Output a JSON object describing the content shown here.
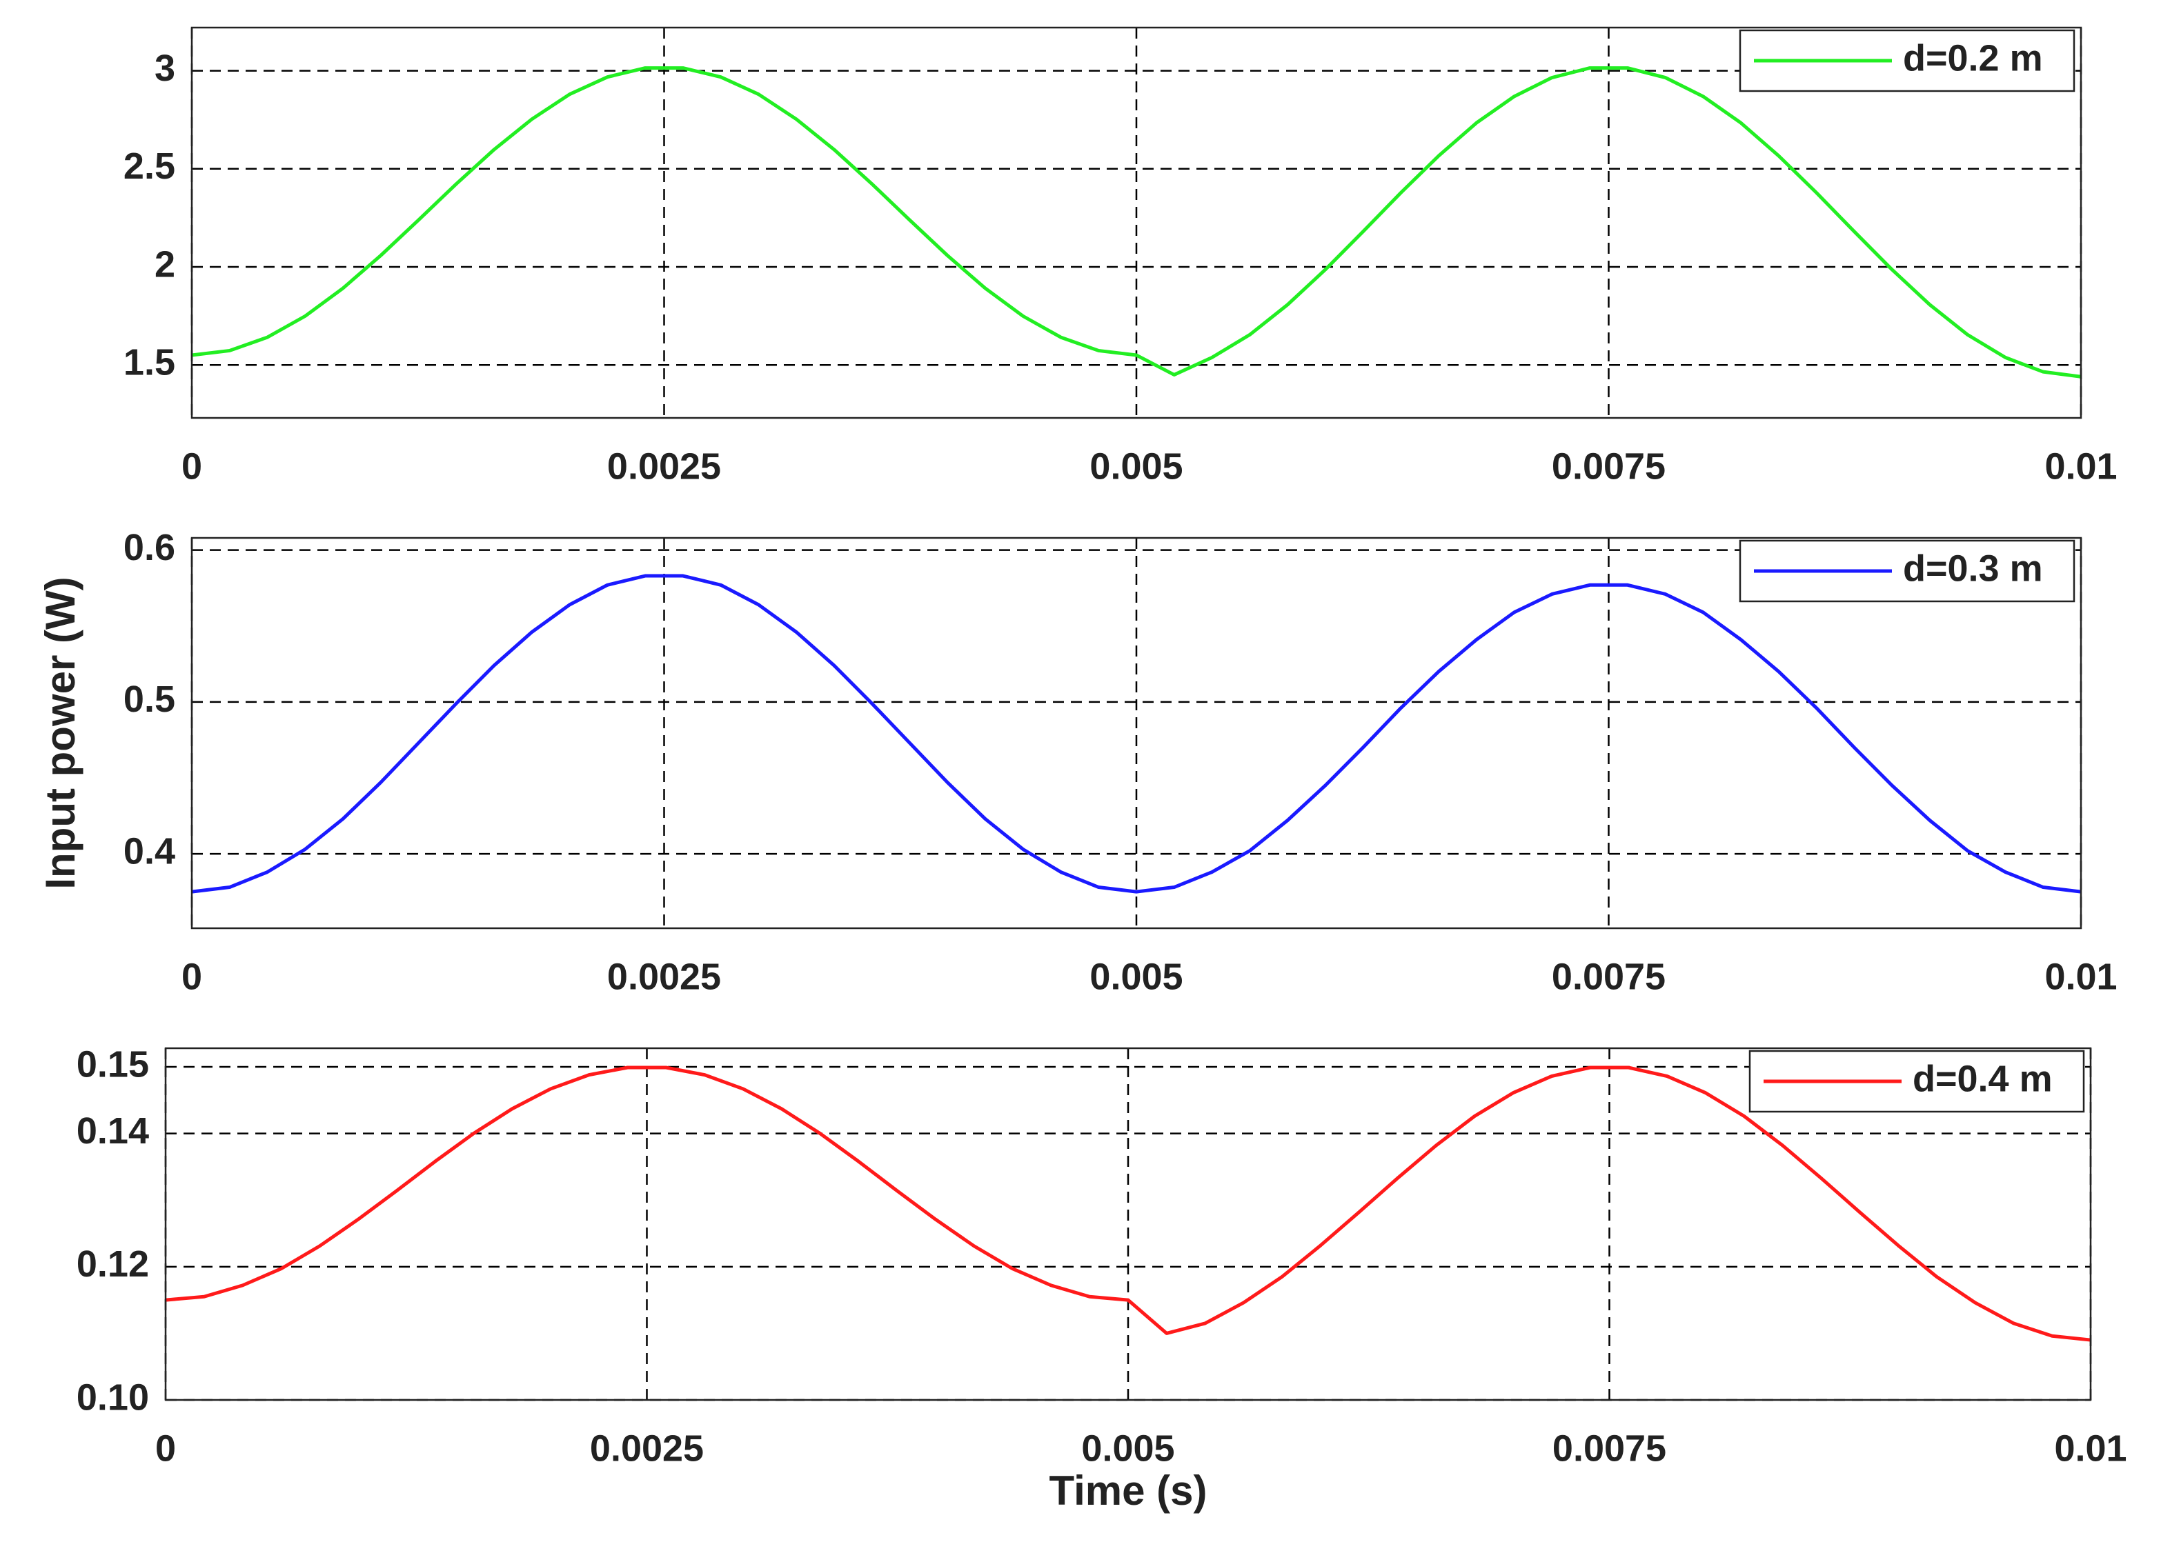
{
  "chart_data": [
    {
      "type": "line",
      "x": [
        0,
        0.0002,
        0.0004,
        0.0006,
        0.0008,
        0.001,
        0.0012,
        0.0014,
        0.0016,
        0.0018,
        0.002,
        0.0022,
        0.0024,
        0.0026,
        0.0028,
        0.003,
        0.0032,
        0.0034,
        0.0036,
        0.0038,
        0.004,
        0.0042,
        0.0044,
        0.0046,
        0.0048,
        0.005,
        0.0052,
        0.0054,
        0.0056,
        0.0058,
        0.006,
        0.0062,
        0.0064,
        0.0066,
        0.0068,
        0.007,
        0.0072,
        0.0074,
        0.0076,
        0.0078,
        0.008,
        0.0082,
        0.0084,
        0.0086,
        0.0088,
        0.009,
        0.0092,
        0.0094,
        0.0096,
        0.0098,
        0.01
      ],
      "series": [
        {
          "name": "d=0.2 m",
          "color": "#22ee22",
          "values": [
            1.55,
            1.573,
            1.641,
            1.749,
            1.891,
            2.058,
            2.239,
            2.423,
            2.598,
            2.753,
            2.88,
            2.968,
            3.014,
            3.014,
            2.968,
            2.88,
            2.753,
            2.598,
            2.423,
            2.239,
            2.058,
            1.891,
            1.749,
            1.641,
            1.573,
            1.55,
            1.45,
            1.538,
            1.654,
            1.807,
            1.986,
            2.18,
            2.378,
            2.566,
            2.734,
            2.869,
            2.965,
            3.014,
            3.014,
            2.965,
            2.869,
            2.734,
            2.566,
            2.378,
            2.18,
            1.986,
            1.807,
            1.654,
            1.538,
            1.465,
            1.44
          ]
        }
      ],
      "xlim": [
        0,
        0.01
      ],
      "xticks": [
        0,
        0.0025,
        0.005,
        0.0075,
        0.01
      ],
      "ylim": [
        1.23,
        3.22
      ],
      "yticks": [
        1.5,
        2,
        2.5,
        3
      ],
      "grid": true,
      "legend": "upper right"
    },
    {
      "type": "line",
      "ylabel": "Input power (W)",
      "x": [
        0,
        0.0002,
        0.0004,
        0.0006,
        0.0008,
        0.001,
        0.0012,
        0.0014,
        0.0016,
        0.0018,
        0.002,
        0.0022,
        0.0024,
        0.0026,
        0.0028,
        0.003,
        0.0032,
        0.0034,
        0.0036,
        0.0038,
        0.004,
        0.0042,
        0.0044,
        0.0046,
        0.0048,
        0.005,
        0.0052,
        0.0054,
        0.0056,
        0.0058,
        0.006,
        0.0062,
        0.0064,
        0.0066,
        0.0068,
        0.007,
        0.0072,
        0.0074,
        0.0076,
        0.0078,
        0.008,
        0.0082,
        0.0084,
        0.0086,
        0.0088,
        0.009,
        0.0092,
        0.0094,
        0.0096,
        0.0098,
        0.01
      ],
      "series": [
        {
          "name": "d=0.3 m",
          "color": "#1a1aff",
          "values": [
            0.375,
            0.378,
            0.388,
            0.403,
            0.423,
            0.447,
            0.473,
            0.499,
            0.524,
            0.546,
            0.564,
            0.577,
            0.583,
            0.583,
            0.577,
            0.564,
            0.546,
            0.524,
            0.499,
            0.473,
            0.447,
            0.423,
            0.403,
            0.388,
            0.378,
            0.375,
            0.378,
            0.388,
            0.402,
            0.422,
            0.445,
            0.47,
            0.496,
            0.52,
            0.541,
            0.559,
            0.571,
            0.577,
            0.577,
            0.571,
            0.559,
            0.541,
            0.52,
            0.496,
            0.47,
            0.445,
            0.422,
            0.402,
            0.388,
            0.378,
            0.375
          ]
        }
      ],
      "xlim": [
        0,
        0.01
      ],
      "xticks": [
        0,
        0.0025,
        0.005,
        0.0075,
        0.01
      ],
      "ylim": [
        0.351,
        0.608
      ],
      "yticks": [
        0.4,
        0.5,
        0.6
      ],
      "grid": true,
      "legend": "upper right"
    },
    {
      "type": "line",
      "xlabel": "Time (s)",
      "x": [
        0,
        0.0002,
        0.0004,
        0.0006,
        0.0008,
        0.001,
        0.0012,
        0.0014,
        0.0016,
        0.0018,
        0.002,
        0.0022,
        0.0024,
        0.0026,
        0.0028,
        0.003,
        0.0032,
        0.0034,
        0.0036,
        0.0038,
        0.004,
        0.0042,
        0.0044,
        0.0046,
        0.0048,
        0.005,
        0.0052,
        0.0054,
        0.0056,
        0.0058,
        0.006,
        0.0062,
        0.0064,
        0.0066,
        0.0068,
        0.007,
        0.0072,
        0.0074,
        0.0076,
        0.0078,
        0.008,
        0.0082,
        0.0084,
        0.0086,
        0.0088,
        0.009,
        0.0092,
        0.0094,
        0.0096,
        0.0098,
        0.01
      ],
      "series": [
        {
          "name": "d=0.4 m",
          "color": "#ff1a1a",
          "values": [
            0.115,
            0.1155,
            0.1172,
            0.1197,
            0.1231,
            0.1271,
            0.1314,
            0.1358,
            0.14,
            0.1437,
            0.1467,
            0.1488,
            0.1499,
            0.1499,
            0.1488,
            0.1467,
            0.1437,
            0.14,
            0.1358,
            0.1314,
            0.1271,
            0.1231,
            0.1197,
            0.1172,
            0.1155,
            0.115,
            0.11,
            0.1115,
            0.1146,
            0.1185,
            0.1232,
            0.1282,
            0.1333,
            0.1382,
            0.1426,
            0.1461,
            0.1486,
            0.1499,
            0.1499,
            0.1486,
            0.1461,
            0.1426,
            0.1382,
            0.1333,
            0.1282,
            0.1232,
            0.1185,
            0.1146,
            0.1115,
            0.1096,
            0.109
          ]
        }
      ],
      "xlim": [
        0,
        0.01
      ],
      "xticks": [
        0,
        0.0025,
        0.005,
        0.0075,
        0.01
      ],
      "ylim": [
        0.1,
        0.1528
      ],
      "yticks": [
        {
          "value": 0.1,
          "label": "0.10"
        },
        0.12,
        0.14,
        0.15
      ],
      "grid": true,
      "legend": "upper right"
    }
  ]
}
